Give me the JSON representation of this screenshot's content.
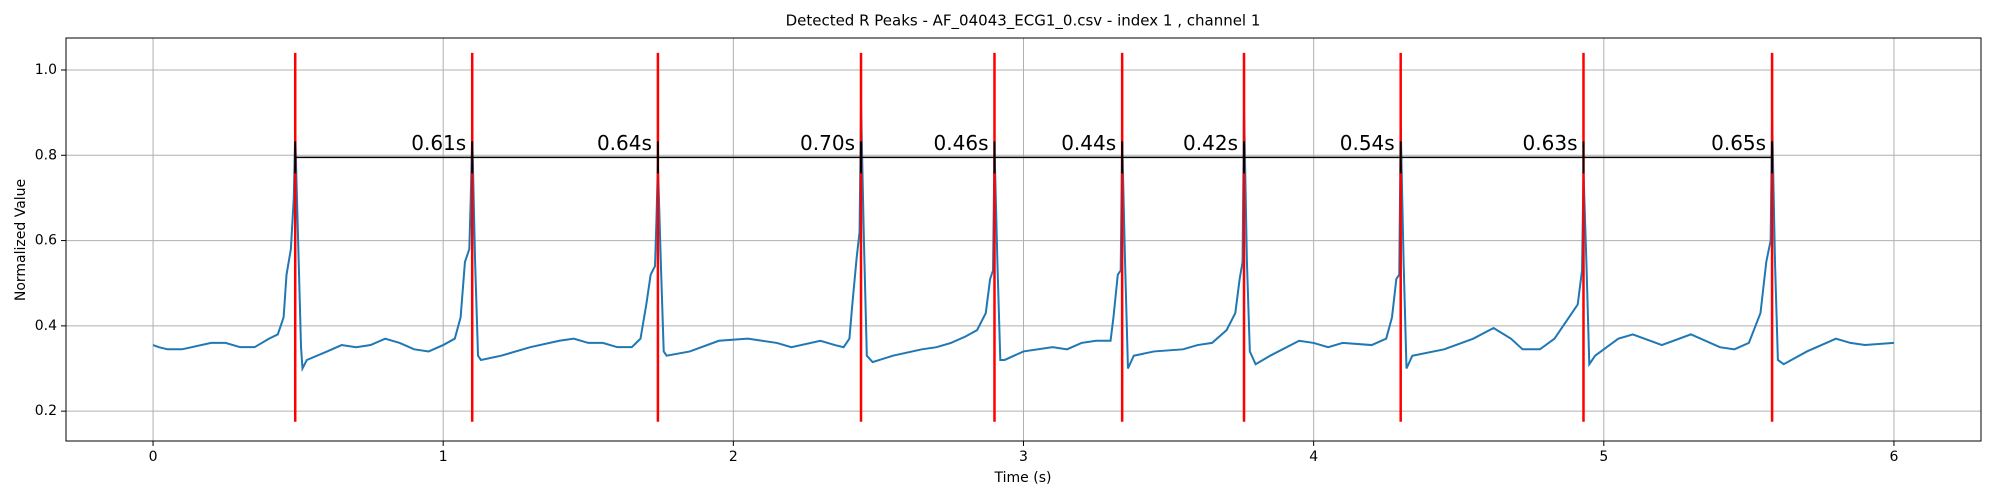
{
  "chart_data": {
    "type": "line",
    "title": "Detected R Peaks - AF_04043_ECG1_0.csv - index 1 , channel 1",
    "xlabel": "Time (s)",
    "ylabel": "Normalized Value",
    "xlim": [
      -0.3,
      6.3
    ],
    "ylim": [
      0.13,
      1.075
    ],
    "xticks": [
      0,
      1,
      2,
      3,
      4,
      5,
      6
    ],
    "yticks": [
      0.2,
      0.4,
      0.6,
      0.8,
      {
        "value": 1,
        "label": "1.0"
      }
    ],
    "grid": true,
    "x": [
      0,
      0.02,
      0.05,
      0.1,
      0.2,
      0.25,
      0.3,
      0.35,
      0.4,
      0.43,
      0.45,
      0.46,
      0.475,
      0.485,
      0.49,
      0.5,
      0.51,
      0.515,
      0.53,
      0.6,
      0.65,
      0.7,
      0.75,
      0.8,
      0.85,
      0.9,
      0.95,
      1.0,
      1.04,
      1.06,
      1.075,
      1.09,
      1.095,
      1.1,
      1.11,
      1.12,
      1.13,
      1.2,
      1.3,
      1.4,
      1.45,
      1.5,
      1.55,
      1.6,
      1.65,
      1.68,
      1.7,
      1.715,
      1.73,
      1.735,
      1.74,
      1.75,
      1.76,
      1.77,
      1.85,
      1.95,
      2.05,
      2.15,
      2.2,
      2.3,
      2.35,
      2.38,
      2.4,
      2.41,
      2.425,
      2.435,
      2.44,
      2.45,
      2.46,
      2.48,
      2.55,
      2.65,
      2.7,
      2.75,
      2.8,
      2.84,
      2.87,
      2.885,
      2.895,
      2.9,
      2.91,
      2.92,
      2.935,
      3.0,
      3.1,
      3.15,
      3.2,
      3.25,
      3.3,
      3.31,
      3.325,
      3.335,
      3.34,
      3.35,
      3.36,
      3.38,
      3.45,
      3.55,
      3.6,
      3.65,
      3.7,
      3.73,
      3.745,
      3.755,
      3.76,
      3.77,
      3.78,
      3.8,
      3.85,
      3.95,
      4.0,
      4.05,
      4.1,
      4.2,
      4.25,
      4.27,
      4.285,
      4.295,
      4.3,
      4.31,
      4.32,
      4.34,
      4.45,
      4.55,
      4.62,
      4.68,
      4.72,
      4.78,
      4.83,
      4.88,
      4.91,
      4.925,
      4.93,
      4.94,
      4.95,
      4.97,
      5.05,
      5.1,
      5.2,
      5.3,
      5.4,
      5.45,
      5.5,
      5.54,
      5.56,
      5.575,
      5.58,
      5.59,
      5.6,
      5.62,
      5.7,
      5.8,
      5.85,
      5.9,
      6.0
    ],
    "series": [
      {
        "color": "#1f77b4",
        "values": [
          0.355,
          0.35,
          0.345,
          0.345,
          0.36,
          0.36,
          0.35,
          0.35,
          0.37,
          0.38,
          0.42,
          0.52,
          0.58,
          0.7,
          0.85,
          0.6,
          0.35,
          0.3,
          0.32,
          0.34,
          0.355,
          0.35,
          0.355,
          0.37,
          0.36,
          0.345,
          0.34,
          0.355,
          0.37,
          0.42,
          0.55,
          0.58,
          0.7,
          0.85,
          0.55,
          0.33,
          0.32,
          0.33,
          0.35,
          0.365,
          0.37,
          0.36,
          0.36,
          0.35,
          0.35,
          0.37,
          0.45,
          0.52,
          0.54,
          0.65,
          0.78,
          0.55,
          0.34,
          0.33,
          0.34,
          0.365,
          0.37,
          0.36,
          0.35,
          0.365,
          0.355,
          0.35,
          0.37,
          0.45,
          0.56,
          0.62,
          0.92,
          0.6,
          0.33,
          0.315,
          0.33,
          0.345,
          0.35,
          0.36,
          0.375,
          0.39,
          0.43,
          0.51,
          0.53,
          0.82,
          0.55,
          0.32,
          0.32,
          0.34,
          0.35,
          0.345,
          0.36,
          0.365,
          0.365,
          0.42,
          0.52,
          0.53,
          0.84,
          0.55,
          0.3,
          0.33,
          0.34,
          0.345,
          0.355,
          0.36,
          0.39,
          0.43,
          0.51,
          0.55,
          0.91,
          0.55,
          0.34,
          0.31,
          0.33,
          0.365,
          0.36,
          0.35,
          0.36,
          0.355,
          0.37,
          0.42,
          0.51,
          0.52,
          0.87,
          0.55,
          0.3,
          0.33,
          0.345,
          0.37,
          0.395,
          0.37,
          0.345,
          0.345,
          0.37,
          0.42,
          0.45,
          0.53,
          0.76,
          0.55,
          0.31,
          0.33,
          0.37,
          0.38,
          0.355,
          0.38,
          0.35,
          0.345,
          0.36,
          0.43,
          0.55,
          0.6,
          0.89,
          0.55,
          0.32,
          0.31,
          0.34,
          0.37,
          0.36,
          0.355,
          0.36
        ]
      }
    ],
    "r_peaks": {
      "color": "#ff0000",
      "x": [
        0.49,
        1.1,
        1.74,
        2.44,
        2.9,
        3.34,
        3.76,
        4.3,
        4.93,
        5.58
      ],
      "ylim": [
        0.175,
        1.04
      ]
    },
    "intervals": {
      "color": "#000000",
      "y": 0.795,
      "labels": [
        "0.61s",
        "0.64s",
        "0.70s",
        "0.46s",
        "0.44s",
        "0.42s",
        "0.54s",
        "0.63s",
        "0.65s"
      ]
    }
  }
}
